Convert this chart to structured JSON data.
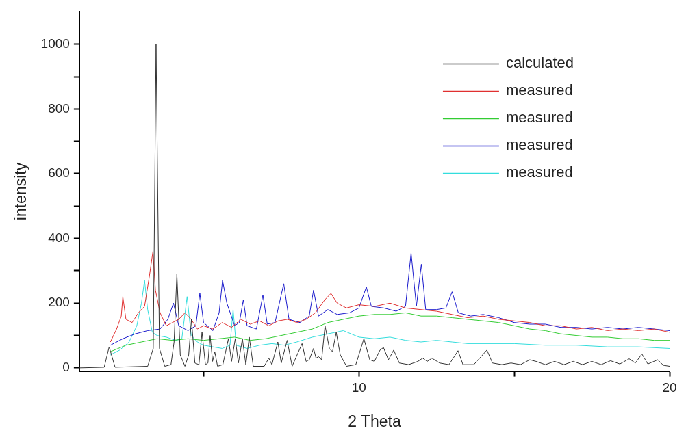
{
  "chart_data": {
    "type": "line",
    "xlabel": "2 Theta",
    "ylabel": "intensity",
    "xlim": [
      1,
      20
    ],
    "ylim": [
      -10,
      1100
    ],
    "xticks": [
      {
        "value": 5,
        "label": null
      },
      10,
      {
        "value": 15,
        "label": null
      },
      20
    ],
    "yticks": [
      0,
      {
        "value": 100,
        "label": null
      },
      200,
      {
        "value": 300,
        "label": null
      },
      400,
      {
        "value": 500,
        "label": null
      },
      600,
      {
        "value": 700,
        "label": null
      },
      800,
      {
        "value": 900,
        "label": null
      },
      1000
    ],
    "grid": false,
    "legend": "top right",
    "marker": "none",
    "line_style": "solid",
    "series": [
      {
        "name": "calculated",
        "color": "#333333",
        "x": [
          1,
          1.8,
          1.96,
          2.15,
          3.2,
          3.38,
          3.47,
          3.58,
          3.75,
          3.95,
          4.05,
          4.14,
          4.25,
          4.4,
          4.52,
          4.61,
          4.72,
          4.85,
          4.95,
          5.06,
          5.14,
          5.21,
          5.29,
          5.36,
          5.45,
          5.62,
          5.8,
          5.9,
          6.02,
          6.12,
          6.25,
          6.36,
          6.47,
          6.6,
          6.95,
          7.1,
          7.2,
          7.39,
          7.5,
          7.69,
          7.85,
          8.17,
          8.3,
          8.4,
          8.54,
          8.62,
          8.7,
          8.8,
          8.91,
          9.05,
          9.15,
          9.27,
          9.4,
          9.6,
          9.9,
          10.16,
          10.35,
          10.5,
          10.68,
          10.79,
          10.95,
          11.12,
          11.3,
          11.6,
          11.9,
          12.05,
          12.2,
          12.35,
          12.6,
          12.9,
          13.19,
          13.35,
          13.7,
          14.12,
          14.3,
          14.6,
          14.9,
          15.2,
          15.5,
          15.7,
          16,
          16.3,
          16.6,
          16.9,
          17.2,
          17.5,
          17.8,
          18.1,
          18.4,
          18.7,
          18.9,
          19.11,
          19.3,
          19.62,
          19.8,
          20
        ],
        "values": [
          0,
          2,
          65,
          2,
          5,
          60,
          1000,
          60,
          5,
          10,
          80,
          290,
          40,
          5,
          40,
          150,
          15,
          10,
          110,
          10,
          15,
          100,
          20,
          50,
          5,
          10,
          90,
          20,
          90,
          15,
          90,
          10,
          95,
          5,
          5,
          30,
          10,
          80,
          15,
          85,
          5,
          75,
          20,
          25,
          60,
          30,
          35,
          25,
          130,
          60,
          50,
          110,
          40,
          5,
          10,
          90,
          25,
          20,
          55,
          63,
          25,
          55,
          15,
          10,
          20,
          30,
          20,
          30,
          15,
          10,
          53,
          10,
          10,
          55,
          15,
          10,
          15,
          10,
          25,
          20,
          10,
          20,
          10,
          20,
          10,
          20,
          10,
          22,
          12,
          28,
          15,
          43,
          12,
          25,
          8,
          5
        ]
      },
      {
        "name": "measured",
        "color": "#e03030",
        "x": [
          2,
          2.2,
          2.35,
          2.4,
          2.5,
          2.7,
          2.9,
          3.1,
          3.25,
          3.37,
          3.45,
          3.6,
          3.8,
          4.0,
          4.2,
          4.4,
          4.6,
          4.8,
          5.0,
          5.3,
          5.6,
          5.9,
          6.2,
          6.5,
          6.8,
          7.1,
          7.4,
          7.7,
          8.0,
          8.3,
          8.6,
          8.9,
          9.1,
          9.3,
          9.6,
          10,
          10.5,
          11,
          11.5,
          12,
          12.5,
          13,
          13.5,
          14,
          14.5,
          15,
          15.5,
          16,
          16.5,
          17,
          17.5,
          18,
          18.5,
          19,
          19.5,
          20
        ],
        "values": [
          80,
          120,
          160,
          220,
          150,
          140,
          170,
          190,
          280,
          360,
          240,
          170,
          130,
          140,
          150,
          170,
          150,
          120,
          130,
          120,
          140,
          125,
          150,
          135,
          145,
          130,
          145,
          150,
          140,
          150,
          170,
          210,
          230,
          200,
          185,
          195,
          190,
          200,
          185,
          180,
          175,
          165,
          155,
          160,
          150,
          145,
          140,
          130,
          130,
          120,
          125,
          115,
          120,
          115,
          120,
          110
        ]
      },
      {
        "name": "measured",
        "color": "#33cc33",
        "x": [
          2,
          2.5,
          3,
          3.5,
          4,
          4.5,
          5,
          5.5,
          6,
          6.5,
          7,
          7.5,
          8,
          8.5,
          9,
          9.5,
          10,
          10.5,
          11,
          11.5,
          12,
          12.5,
          13,
          13.5,
          14,
          14.5,
          15,
          15.5,
          16,
          16.5,
          17,
          17.5,
          18,
          18.5,
          19,
          19.5,
          20
        ],
        "values": [
          50,
          70,
          80,
          90,
          85,
          90,
          85,
          90,
          95,
          85,
          90,
          100,
          110,
          120,
          140,
          150,
          160,
          165,
          165,
          170,
          160,
          160,
          155,
          150,
          145,
          140,
          130,
          120,
          115,
          105,
          100,
          95,
          95,
          90,
          90,
          85,
          85
        ]
      },
      {
        "name": "measured",
        "color": "#1a1acc",
        "x": [
          2,
          2.4,
          2.8,
          3.2,
          3.6,
          3.85,
          4.03,
          4.2,
          4.5,
          4.75,
          4.88,
          5.0,
          5.3,
          5.5,
          5.61,
          5.75,
          6.0,
          6.15,
          6.28,
          6.4,
          6.7,
          6.91,
          7.05,
          7.3,
          7.58,
          7.75,
          8.1,
          8.4,
          8.54,
          8.7,
          9.0,
          9.3,
          9.7,
          10.0,
          10.24,
          10.4,
          10.8,
          11.2,
          11.5,
          11.68,
          11.85,
          12.01,
          12.15,
          12.5,
          12.8,
          13.0,
          13.2,
          13.6,
          14,
          14.5,
          15,
          15.5,
          16,
          16.5,
          17,
          17.5,
          18,
          18.5,
          19,
          19.5,
          20
        ],
        "values": [
          70,
          90,
          105,
          115,
          120,
          150,
          200,
          130,
          115,
          130,
          230,
          140,
          115,
          170,
          270,
          200,
          130,
          140,
          210,
          130,
          120,
          225,
          135,
          140,
          260,
          150,
          140,
          160,
          240,
          160,
          180,
          165,
          170,
          185,
          250,
          190,
          185,
          175,
          190,
          355,
          190,
          320,
          180,
          180,
          185,
          235,
          170,
          160,
          165,
          155,
          140,
          135,
          135,
          125,
          125,
          120,
          125,
          120,
          125,
          120,
          115
        ]
      },
      {
        "name": "measured",
        "color": "#33dddd",
        "x": [
          2,
          2.3,
          2.6,
          2.85,
          3.0,
          3.1,
          3.2,
          3.35,
          3.5,
          3.8,
          4.1,
          4.3,
          4.47,
          4.6,
          4.8,
          5.0,
          5.3,
          5.6,
          5.85,
          5.95,
          6.05,
          6.4,
          6.8,
          7.2,
          7.6,
          8.0,
          8.5,
          9.0,
          9.5,
          10,
          10.5,
          11,
          11.5,
          12,
          12.5,
          13,
          13.5,
          14,
          15,
          16,
          17,
          18,
          19,
          20
        ],
        "values": [
          40,
          55,
          80,
          130,
          200,
          270,
          180,
          110,
          100,
          95,
          85,
          90,
          220,
          100,
          80,
          70,
          65,
          60,
          70,
          180,
          70,
          60,
          70,
          75,
          70,
          80,
          95,
          105,
          115,
          95,
          90,
          95,
          85,
          80,
          85,
          80,
          75,
          75,
          75,
          70,
          70,
          65,
          65,
          60
        ]
      }
    ]
  }
}
